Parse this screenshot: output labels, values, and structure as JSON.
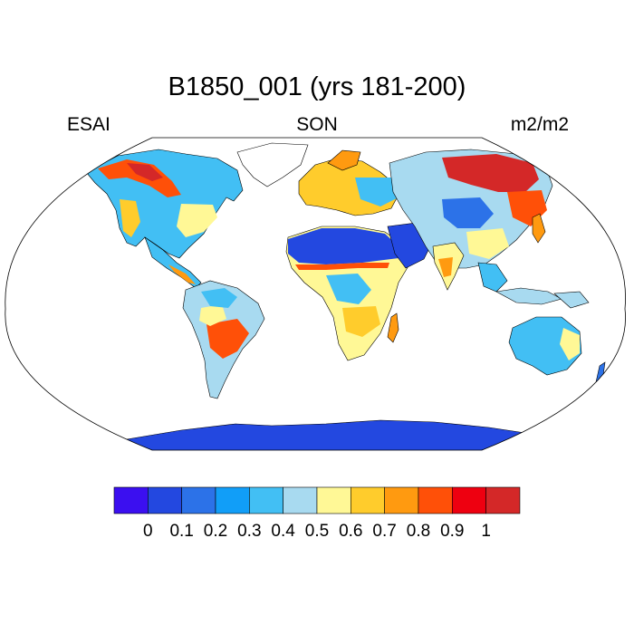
{
  "title": "B1850_001 (yrs 181-200)",
  "left_label": "ESAI",
  "center_label": "SON",
  "right_label": "m2/m2",
  "colorbar": {
    "colors": [
      "#3b0ff0",
      "#2348e0",
      "#2c72e8",
      "#119ef8",
      "#42bff4",
      "#a8daf0",
      "#fff896",
      "#ffcc2c",
      "#ff9a10",
      "#ff5008",
      "#ee0010",
      "#d42828"
    ],
    "labels": [
      "0",
      "0.1",
      "0.2",
      "0.3",
      "0.4",
      "0.5",
      "0.6",
      "0.7",
      "0.8",
      "0.9",
      "1"
    ]
  },
  "colors": {
    "ocean": "#ffffff",
    "coastline": "#000000",
    "antarctica": "#2348e0",
    "sahara": "#2348e0"
  }
}
